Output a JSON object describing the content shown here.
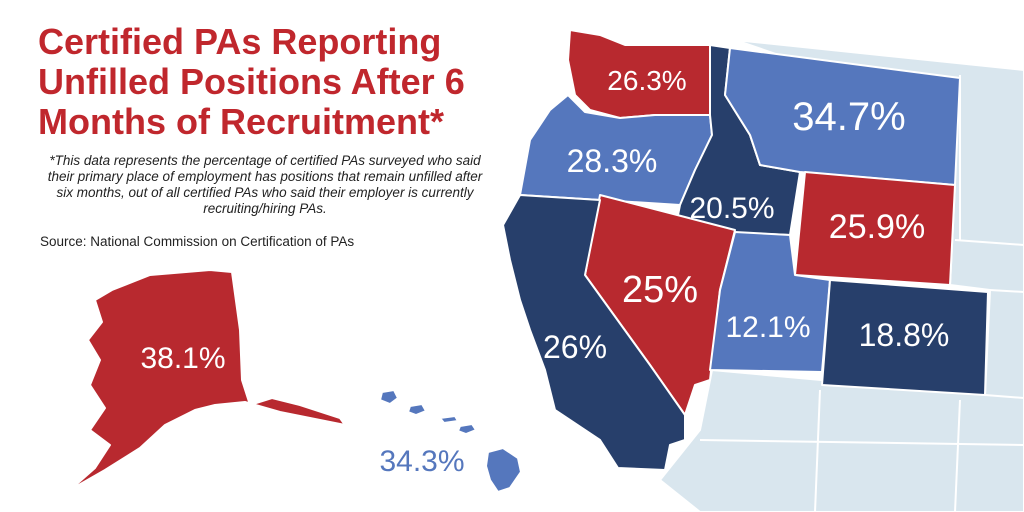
{
  "title": {
    "line1": "Certified PAs Reporting",
    "line2": "Unfilled Positions After 6",
    "line3": "Months of Recruitment*"
  },
  "note": "*This data represents the percentage of certified PAs surveyed who said their primary place of employment has positions that remain unfilled after six months, out of all certified PAs who said their employer is currently recruiting/hiring PAs.",
  "source": "Source: National Commission on Certification of PAs",
  "colors": {
    "red": "#b8292f",
    "light_blue": "#5577bd",
    "dark_blue": "#273f6b",
    "background_states": "#d9e6ee",
    "title": "#c0272d"
  },
  "states": {
    "washington": {
      "value": "26.3%",
      "color_key": "red"
    },
    "oregon": {
      "value": "28.3%",
      "color_key": "light_blue"
    },
    "idaho": {
      "value": "20.5%",
      "color_key": "dark_blue"
    },
    "montana": {
      "value": "34.7%",
      "color_key": "light_blue"
    },
    "wyoming": {
      "value": "25.9%",
      "color_key": "red"
    },
    "nevada": {
      "value": "25%",
      "color_key": "red"
    },
    "utah": {
      "value": "12.1%",
      "color_key": "light_blue"
    },
    "colorado": {
      "value": "18.8%",
      "color_key": "dark_blue"
    },
    "california": {
      "value": "26%",
      "color_key": "dark_blue"
    },
    "alaska": {
      "value": "38.1%",
      "color_key": "red"
    },
    "hawaii": {
      "value": "34.3%",
      "color_key": "light_blue"
    }
  }
}
